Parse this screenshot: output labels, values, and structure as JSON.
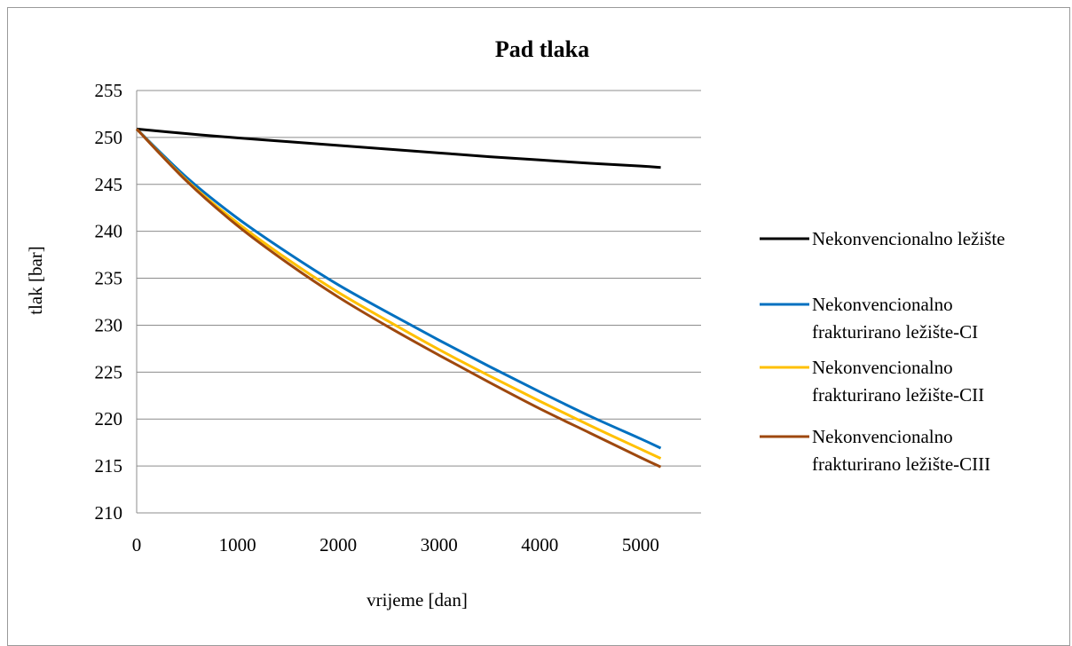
{
  "chart_data": {
    "type": "line",
    "title": "Pad tlaka",
    "xlabel": "vrijeme [dan]",
    "ylabel": "tlak [bar]",
    "xlim": [
      0,
      5600
    ],
    "ylim": [
      210,
      255
    ],
    "xticks": [
      "0",
      "1000",
      "2000",
      "3000",
      "4000",
      "5000"
    ],
    "yticks": [
      "210",
      "215",
      "220",
      "225",
      "230",
      "235",
      "240",
      "245",
      "250",
      "255"
    ],
    "grid": "horizontal",
    "legend_position": "right",
    "series": [
      {
        "name": "Nekonvencionalno ležište",
        "legend_lines": [
          "Nekonvencionalno ležište"
        ],
        "color": "#000000",
        "x": [
          0,
          500,
          1000,
          1500,
          2000,
          2500,
          3000,
          3500,
          4000,
          4500,
          5000,
          5200
        ],
        "y": [
          250.9,
          250.4,
          249.95,
          249.55,
          249.15,
          248.75,
          248.35,
          247.95,
          247.6,
          247.25,
          246.95,
          246.8
        ]
      },
      {
        "name": "Nekonvencionalno frakturirano ležište-CI",
        "legend_lines": [
          "Nekonvencionalno",
          "frakturirano ležište-CI"
        ],
        "color": "#0070C0",
        "x": [
          0,
          500,
          1000,
          1500,
          2000,
          2500,
          3000,
          3500,
          4000,
          4500,
          5000,
          5200
        ],
        "y": [
          250.9,
          245.7,
          241.4,
          237.7,
          234.3,
          231.3,
          228.4,
          225.6,
          222.9,
          220.3,
          217.9,
          216.9
        ]
      },
      {
        "name": "Nekonvencionalno frakturirano ležište-CII",
        "legend_lines": [
          "Nekonvencionalno",
          "frakturirano ležište-CII"
        ],
        "color": "#FFC000",
        "x": [
          0,
          500,
          1000,
          1500,
          2000,
          2500,
          3000,
          3500,
          4000,
          4500,
          5000,
          5200
        ],
        "y": [
          250.9,
          245.4,
          240.9,
          237.0,
          233.5,
          230.4,
          227.4,
          224.6,
          221.9,
          219.3,
          216.8,
          215.8
        ]
      },
      {
        "name": "Nekonvencionalno frakturirano ležište-CIII",
        "legend_lines": [
          "Nekonvencionalno",
          "frakturirano ležište-CIII"
        ],
        "color": "#9E480E",
        "x": [
          0,
          500,
          1000,
          1500,
          2000,
          2500,
          3000,
          3500,
          4000,
          4500,
          5000,
          5200
        ],
        "y": [
          250.9,
          245.3,
          240.6,
          236.6,
          233.0,
          229.8,
          226.8,
          223.9,
          221.1,
          218.5,
          215.9,
          214.9
        ]
      }
    ]
  }
}
